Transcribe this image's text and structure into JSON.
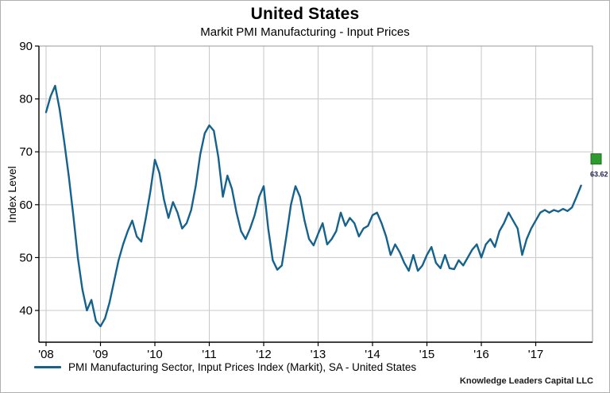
{
  "header": {
    "title": "United States",
    "subtitle": "Markit PMI Manufacturing - Input Prices"
  },
  "legend": {
    "label": "PMI Manufacturing Sector, Input Prices Index (Markit), SA - United States"
  },
  "footer": {
    "attribution": "Knowledge Leaders Capital LLC"
  },
  "chart_data": {
    "type": "line",
    "title": "United States",
    "subtitle": "Markit PMI Manufacturing - Input Prices",
    "ylabel": "Index Level",
    "xlabel": "",
    "ylim": [
      34,
      90
    ],
    "y_ticks": [
      40,
      50,
      60,
      70,
      80,
      90
    ],
    "x_tick_labels": [
      "'08",
      "'09",
      "'10",
      "'11",
      "'12",
      "'13",
      "'14",
      "'15",
      "'16",
      "'17"
    ],
    "frequency": "monthly",
    "start": "2008-01",
    "grid": true,
    "legend_position": "bottom",
    "line_color": "#15638d",
    "marker_color": "#2e9b2e",
    "latest_value": 63.62,
    "latest_label": "63.62",
    "series": [
      {
        "name": "PMI Manufacturing Sector, Input Prices Index (Markit), SA - United States",
        "values": [
          77.5,
          80.5,
          82.5,
          78.0,
          72.0,
          65.5,
          58.0,
          50.0,
          44.0,
          40.0,
          42.0,
          38.0,
          37.0,
          38.5,
          41.5,
          45.5,
          49.5,
          52.5,
          55.0,
          57.0,
          54.0,
          53.0,
          57.5,
          62.5,
          68.5,
          66.0,
          61.0,
          57.5,
          60.5,
          58.5,
          55.5,
          56.5,
          59.0,
          63.5,
          69.5,
          73.5,
          75.0,
          74.0,
          69.0,
          61.5,
          65.5,
          63.0,
          58.5,
          55.0,
          53.5,
          55.5,
          58.0,
          61.5,
          63.5,
          55.5,
          49.5,
          47.7,
          48.5,
          54.0,
          60.0,
          63.5,
          61.5,
          57.0,
          53.5,
          52.3,
          54.5,
          56.5,
          52.5,
          53.5,
          55.0,
          58.5,
          56.0,
          57.5,
          56.5,
          54.0,
          55.5,
          56.0,
          58.0,
          58.5,
          56.5,
          54.0,
          50.5,
          52.5,
          51.0,
          49.0,
          47.5,
          50.5,
          47.5,
          48.5,
          50.5,
          52.0,
          49.0,
          48.0,
          50.5,
          48.0,
          47.8,
          49.5,
          48.5,
          50.0,
          51.5,
          52.5,
          50.0,
          52.5,
          53.5,
          52.0,
          55.0,
          56.5,
          58.5,
          57.0,
          55.5,
          50.5,
          53.5,
          55.5,
          57.0,
          58.5,
          59.0,
          58.5,
          59.0,
          58.7,
          59.2,
          58.8,
          59.5,
          61.5,
          63.62
        ]
      }
    ]
  }
}
